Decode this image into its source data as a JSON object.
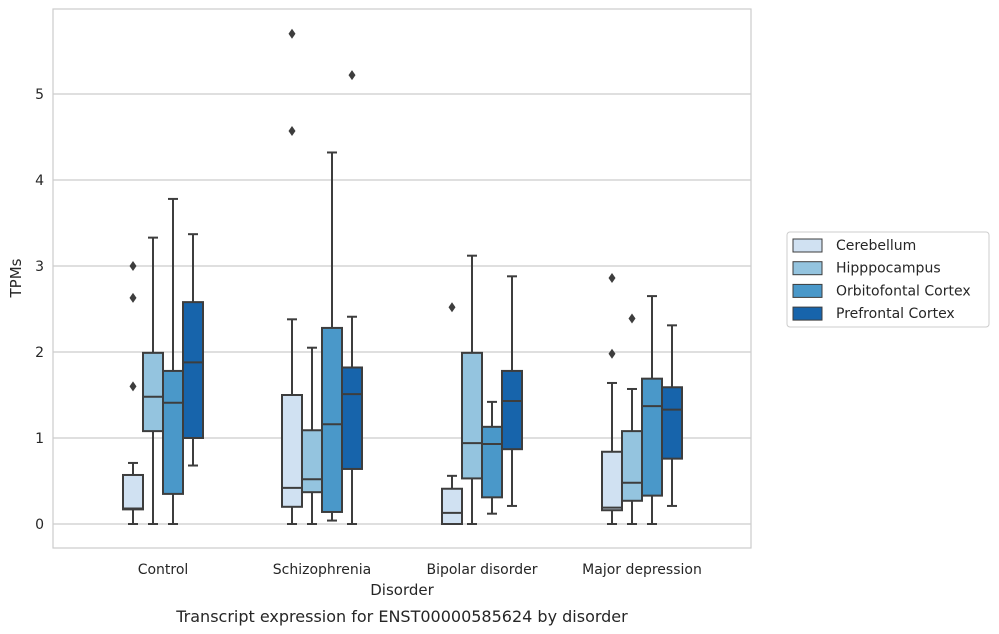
{
  "chart_data": {
    "type": "boxplot",
    "caption": "Transcript expression for ENST00000585624 by disorder",
    "xlabel": "Disorder",
    "ylabel": "TPMs",
    "ylim": [
      -0.28,
      5.98
    ],
    "yticks": [
      0,
      1,
      2,
      3,
      4,
      5
    ],
    "grid": "horizontal",
    "legend_position": "right",
    "categories": [
      "Control",
      "Schizophrenia",
      "Bipolar disorder",
      "Major depression"
    ],
    "series": [
      {
        "name": "Cerebellum",
        "color": "#d0e1f2",
        "boxes": [
          {
            "whislo": 0.0,
            "q1": 0.17,
            "med": 0.18,
            "q3": 0.57,
            "whishi": 0.71,
            "fliers": [
              1.6,
              2.63,
              3.0
            ]
          },
          {
            "whislo": 0.0,
            "q1": 0.2,
            "med": 0.42,
            "q3": 1.5,
            "whishi": 2.38,
            "fliers": [
              4.57,
              5.7
            ]
          },
          {
            "whislo": 0.0,
            "q1": 0.0,
            "med": 0.13,
            "q3": 0.41,
            "whishi": 0.56,
            "fliers": [
              2.52
            ]
          },
          {
            "whislo": 0.0,
            "q1": 0.16,
            "med": 0.19,
            "q3": 0.84,
            "whishi": 1.64,
            "fliers": [
              1.98,
              2.86
            ]
          }
        ]
      },
      {
        "name": "Hipppocampus",
        "color": "#94c4df",
        "boxes": [
          {
            "whislo": 0.0,
            "q1": 1.08,
            "med": 1.48,
            "q3": 1.99,
            "whishi": 3.33,
            "fliers": []
          },
          {
            "whislo": 0.0,
            "q1": 0.37,
            "med": 0.52,
            "q3": 1.09,
            "whishi": 2.05,
            "fliers": []
          },
          {
            "whislo": 0.0,
            "q1": 0.53,
            "med": 0.94,
            "q3": 1.99,
            "whishi": 3.12,
            "fliers": []
          },
          {
            "whislo": 0.0,
            "q1": 0.27,
            "med": 0.48,
            "q3": 1.08,
            "whishi": 1.57,
            "fliers": [
              2.39
            ]
          }
        ]
      },
      {
        "name": "Orbitofontal Cortex",
        "color": "#4a98c9",
        "boxes": [
          {
            "whislo": 0.0,
            "q1": 0.35,
            "med": 1.41,
            "q3": 1.78,
            "whishi": 3.78,
            "fliers": []
          },
          {
            "whislo": 0.04,
            "q1": 0.14,
            "med": 1.16,
            "q3": 2.28,
            "whishi": 4.32,
            "fliers": []
          },
          {
            "whislo": 0.12,
            "q1": 0.31,
            "med": 0.93,
            "q3": 1.13,
            "whishi": 1.42,
            "fliers": []
          },
          {
            "whislo": 0.0,
            "q1": 0.33,
            "med": 1.37,
            "q3": 1.69,
            "whishi": 2.65,
            "fliers": []
          }
        ]
      },
      {
        "name": "Prefrontal Cortex",
        "color": "#1764ab",
        "boxes": [
          {
            "whislo": 0.68,
            "q1": 1.0,
            "med": 1.88,
            "q3": 2.58,
            "whishi": 3.37,
            "fliers": []
          },
          {
            "whislo": 0.0,
            "q1": 0.64,
            "med": 1.51,
            "q3": 1.82,
            "whishi": 2.41,
            "fliers": [
              5.22
            ]
          },
          {
            "whislo": 0.21,
            "q1": 0.87,
            "med": 1.43,
            "q3": 1.78,
            "whishi": 2.88,
            "fliers": []
          },
          {
            "whislo": 0.21,
            "q1": 0.76,
            "med": 1.33,
            "q3": 1.59,
            "whishi": 2.31,
            "fliers": []
          }
        ]
      }
    ]
  }
}
